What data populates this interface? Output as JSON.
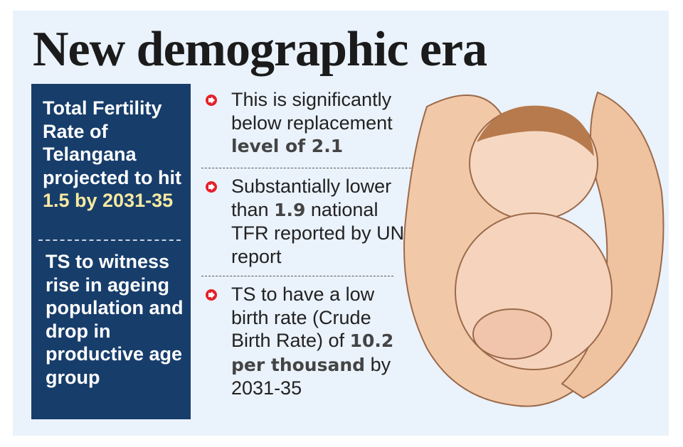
{
  "title": "New demographic era",
  "left_box": {
    "section1": {
      "text": "Total Fertility Rate of Telangana projected to hit ",
      "highlight": "1.5 by 2031-35"
    },
    "section2": "TS to witness rise in ageing population and drop in productive age group"
  },
  "bullets": [
    {
      "pre": "This is significantly below replacement ",
      "bold": "level of 2.1",
      "post": ""
    },
    {
      "pre": "Substantially lower than ",
      "bold": "1.9",
      "post": " national TFR reported by UN report"
    },
    {
      "pre": "TS to have a low birth rate (Crude Birth Rate) of ",
      "bold": "10.2 per thousand",
      "post": " by 2031-35"
    }
  ],
  "colors": {
    "background": "#eaf2fb",
    "box": "#173d6b",
    "highlight": "#f7e9a0",
    "bullet": "#e4202a"
  },
  "icon": "arrow-circle-right-icon"
}
